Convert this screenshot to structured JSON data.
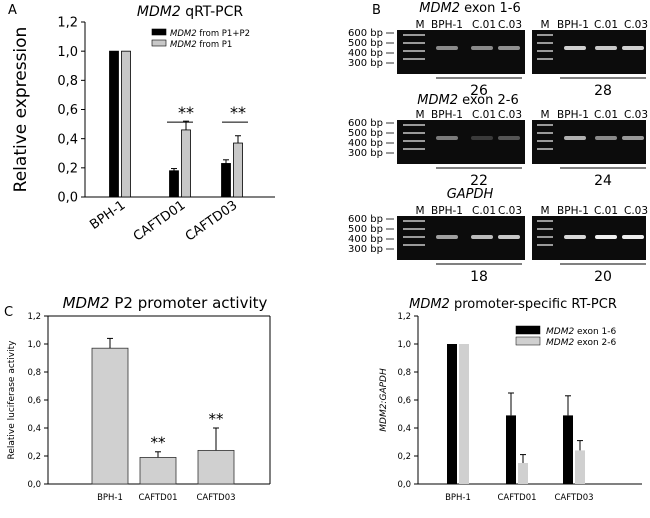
{
  "panels": {
    "A": {
      "letter": "A",
      "title_gene": "MDM2",
      "title_rest": " qRT-PCR",
      "chart_data": {
        "type": "bar",
        "title": "MDM2 qRT-PCR",
        "ylabel": "Relative expression",
        "xlabel": "",
        "ylim": [
          0,
          1.2
        ],
        "yticks": [
          "0,0",
          "0,2",
          "0,4",
          "0,6",
          "0,8",
          "1,0",
          "1,2"
        ],
        "categories": [
          "BPH-1",
          "CAFTD01",
          "CAFTD03"
        ],
        "series": [
          {
            "name_gene": "MDM2",
            "name_rest": " from P1+P2",
            "color": "#000000",
            "values": [
              1.0,
              0.18,
              0.23
            ],
            "errors": [
              0,
              0.015,
              0.025
            ]
          },
          {
            "name_gene": "MDM2",
            "name_rest": " from P1",
            "color": "#c8c8c8",
            "values": [
              1.0,
              0.46,
              0.37
            ],
            "errors": [
              0,
              0.06,
              0.05
            ]
          }
        ],
        "annotations": [
          "**",
          "**"
        ]
      }
    },
    "B": {
      "letter": "B",
      "gels": [
        {
          "title_gene": "MDM2",
          "title_rest": " exon 1-6",
          "left_num": "26",
          "right_num": "28"
        },
        {
          "title_gene": "MDM2",
          "title_rest": " exon 2-6",
          "left_num": "22",
          "right_num": "24"
        },
        {
          "title_gene": "GAPDH",
          "title_rest": "",
          "left_num": "18",
          "right_num": "20"
        }
      ],
      "lane_labels": [
        "M",
        "BPH-1",
        "C.01",
        "C.03"
      ],
      "markers": [
        "600 bp",
        "500 bp",
        "400 bp",
        "300 bp"
      ]
    },
    "C": {
      "letter": "C",
      "title_gene": "MDM2",
      "title_rest": " P2 promoter activity",
      "chart_data": {
        "type": "bar",
        "title": "MDM2 P2 promoter activity",
        "ylabel": "Relative luciferase activity",
        "xlabel": "",
        "ylim": [
          0,
          1.2
        ],
        "yticks": [
          "0,0",
          "0,2",
          "0,4",
          "0,6",
          "0,8",
          "1,0",
          "1,2"
        ],
        "categories": [
          "BPH-1",
          "CAFTD01",
          "CAFTD03"
        ],
        "series": [
          {
            "name": "luciferase",
            "color": "#d0d0d0",
            "values": [
              0.97,
              0.19,
              0.24
            ],
            "errors": [
              0.07,
              0.04,
              0.16
            ]
          }
        ],
        "annotations": [
          "**",
          "**"
        ]
      }
    },
    "D": {
      "title_gene": "MDM2",
      "title_rest": " promoter-specific RT-PCR",
      "chart_data": {
        "type": "bar",
        "title": "MDM2 promoter-specific RT-PCR",
        "ylabel": "MDM2:GAPDH",
        "xlabel": "",
        "ylim": [
          0,
          1.2
        ],
        "yticks": [
          "0,0",
          "0,2",
          "0,4",
          "0,6",
          "0,8",
          "1,0",
          "1,2"
        ],
        "categories": [
          "BPH-1",
          "CAFTD01",
          "CAFTD03"
        ],
        "series": [
          {
            "name_gene": "MDM2",
            "name_rest": " exon 1-6",
            "color": "#000000",
            "values": [
              1.0,
              0.49,
              0.49
            ],
            "errors": [
              0,
              0.16,
              0.14
            ]
          },
          {
            "name_gene": "MDM2",
            "name_rest": " exon 2-6",
            "color": "#d0d0d0",
            "values": [
              1.0,
              0.15,
              0.24
            ],
            "errors": [
              0,
              0.06,
              0.07
            ]
          }
        ]
      }
    }
  }
}
